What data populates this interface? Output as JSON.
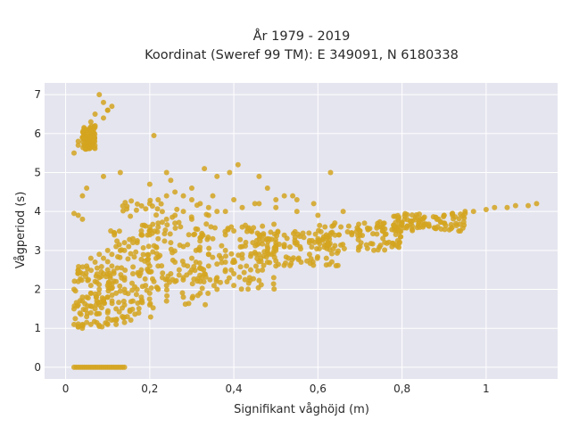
{
  "chart_data": {
    "type": "scatter",
    "title_line1": "År 1979 - 2019",
    "title_line2": "Koordinat (Sweref 99 TM): E 349091, N 6180338",
    "xlabel": "Signifikant våghöjd (m)",
    "ylabel": "Vågperiod (s)",
    "xlim": [
      -0.05,
      1.17
    ],
    "ylim": [
      -0.3,
      7.3
    ],
    "x_ticks": [
      0,
      0.2,
      0.4,
      0.6,
      0.8,
      1
    ],
    "x_tick_labels": [
      "0",
      "0,2",
      "0,4",
      "0,6",
      "0,8",
      "1"
    ],
    "y_ticks": [
      0,
      1,
      2,
      3,
      4,
      5,
      6,
      7
    ],
    "y_tick_labels": [
      "0",
      "1",
      "2",
      "3",
      "4",
      "5",
      "6",
      "7"
    ],
    "grid": true,
    "background": "#e5e5ef",
    "marker_color": "#d4a520",
    "series": [
      {
        "x": [
          0.02,
          0.03,
          0.04,
          0.05,
          0.06,
          0.08,
          0.1,
          0.12,
          0.14,
          0.02,
          0.03,
          0.04,
          0.05,
          0.06,
          0.06,
          0.07,
          0.08,
          0.09,
          0.1,
          0.11,
          0.02,
          0.03,
          0.04,
          0.05,
          0.06,
          0.07,
          0.08,
          0.09,
          0.1,
          0.12,
          0.14,
          0.03,
          0.05,
          0.07,
          0.09,
          0.11,
          0.13,
          0.15,
          0.17,
          0.04,
          0.06,
          0.08,
          0.1,
          0.12,
          0.14,
          0.16,
          0.18,
          0.2,
          0.06,
          0.08,
          0.1,
          0.12,
          0.14,
          0.16,
          0.18,
          0.2,
          0.22,
          0.1,
          0.12,
          0.14,
          0.16,
          0.18,
          0.2,
          0.22,
          0.24,
          0.26,
          0.14,
          0.16,
          0.18,
          0.2,
          0.22,
          0.24,
          0.26,
          0.28,
          0.17,
          0.19,
          0.21,
          0.23,
          0.25,
          0.27,
          0.29,
          0.31,
          0.2,
          0.22,
          0.24,
          0.26,
          0.28,
          0.3,
          0.32,
          0.34,
          0.36,
          0.18,
          0.2,
          0.22,
          0.25,
          0.28,
          0.31,
          0.34,
          0.37,
          0.4,
          0.3,
          0.32,
          0.34,
          0.36,
          0.38,
          0.4,
          0.42,
          0.44,
          0.46,
          0.48,
          0.5,
          0.35,
          0.38,
          0.4,
          0.42,
          0.44,
          0.46,
          0.48,
          0.5,
          0.52,
          0.42,
          0.45,
          0.48,
          0.5,
          0.52,
          0.55,
          0.58,
          0.6,
          0.62,
          0.5,
          0.52,
          0.55,
          0.58,
          0.6,
          0.62,
          0.65,
          0.68,
          0.7,
          0.62,
          0.65,
          0.68,
          0.7,
          0.72,
          0.75,
          0.78,
          0.8,
          0.82,
          0.75,
          0.78,
          0.8,
          0.82,
          0.85,
          0.88,
          0.9,
          0.92,
          0.95,
          0.88,
          0.9,
          0.92,
          0.95,
          0.97,
          1.0,
          1.02,
          1.05,
          1.07,
          1.1,
          1.12,
          0.4,
          0.45,
          0.5,
          0.35,
          0.3,
          0.25,
          0.55,
          0.6,
          0.28,
          0.33,
          0.38,
          0.43,
          0.48,
          0.53,
          0.58,
          0.32,
          0.36,
          0.4,
          0.44,
          0.5,
          0.56,
          0.62,
          0.22,
          0.26,
          0.3,
          0.34,
          0.38,
          0.42,
          0.26,
          0.3,
          0.34,
          0.38,
          0.42,
          0.46,
          0.5,
          0.54,
          0.2,
          0.24,
          0.28,
          0.32,
          0.36,
          0.4,
          0.03,
          0.04,
          0.05,
          0.06,
          0.07,
          0.09,
          0.1,
          0.11,
          0.02,
          0.03,
          0.04,
          0.05,
          0.06,
          0.07,
          0.08,
          0.09,
          0.1,
          0.03,
          0.04,
          0.2,
          0.24,
          0.33,
          0.36,
          0.39,
          0.41,
          0.46,
          0.48,
          0.52,
          0.55,
          0.59,
          0.63,
          0.66,
          0.21,
          0.05,
          0.09,
          0.04,
          0.13,
          0.02,
          0.02,
          0.03,
          0.04,
          0.05,
          0.06,
          0.07,
          0.08,
          0.09,
          0.1,
          0.11,
          0.12,
          0.13,
          0.14,
          0.025,
          0.035,
          0.045,
          0.055,
          0.065,
          0.075,
          0.085,
          0.095,
          0.105,
          0.115,
          0.125,
          0.135
        ],
        "y": [
          1.1,
          1.05,
          1.1,
          1.15,
          1.1,
          1.05,
          1.1,
          1.1,
          1.15,
          1.5,
          1.6,
          1.7,
          1.8,
          1.9,
          2.1,
          2.2,
          2.3,
          2.4,
          2.5,
          2.6,
          2.0,
          2.2,
          2.4,
          1.3,
          1.4,
          1.5,
          1.6,
          1.7,
          1.8,
          1.9,
          2.0,
          2.5,
          2.6,
          2.7,
          2.8,
          2.9,
          3.0,
          3.1,
          3.2,
          1.8,
          1.9,
          2.0,
          2.1,
          2.2,
          2.3,
          2.4,
          2.5,
          2.6,
          2.8,
          2.9,
          3.0,
          3.1,
          3.2,
          3.3,
          3.4,
          3.5,
          3.6,
          1.4,
          1.5,
          1.6,
          1.7,
          1.8,
          1.9,
          2.0,
          2.1,
          2.2,
          3.0,
          3.2,
          3.4,
          3.6,
          3.7,
          3.8,
          3.9,
          4.0,
          2.0,
          2.1,
          2.2,
          2.3,
          2.4,
          2.5,
          2.6,
          2.7,
          4.2,
          4.3,
          4.4,
          4.5,
          4.4,
          4.3,
          4.2,
          4.1,
          4.0,
          3.5,
          3.4,
          3.3,
          3.2,
          3.1,
          3.0,
          2.9,
          2.8,
          2.7,
          2.5,
          2.55,
          2.6,
          2.65,
          2.7,
          2.75,
          2.8,
          2.85,
          2.9,
          2.95,
          3.0,
          3.3,
          3.4,
          3.5,
          3.6,
          3.5,
          3.4,
          3.3,
          3.2,
          3.1,
          2.9,
          2.95,
          3.0,
          3.05,
          3.1,
          3.15,
          3.2,
          3.25,
          3.3,
          3.1,
          3.15,
          3.2,
          3.25,
          3.3,
          3.35,
          3.4,
          3.45,
          3.5,
          3.35,
          3.4,
          3.45,
          3.5,
          3.55,
          3.6,
          3.65,
          3.7,
          3.75,
          3.6,
          3.65,
          3.7,
          3.75,
          3.8,
          3.85,
          3.9,
          3.9,
          3.95,
          3.85,
          3.9,
          3.95,
          4.0,
          4.0,
          4.05,
          4.1,
          4.1,
          4.15,
          4.15,
          4.2,
          4.3,
          4.2,
          4.1,
          4.4,
          4.6,
          4.8,
          4.0,
          3.9,
          2.3,
          2.4,
          2.5,
          2.6,
          2.7,
          2.8,
          2.9,
          2.2,
          2.3,
          2.4,
          2.5,
          2.6,
          2.7,
          2.8,
          2.6,
          2.7,
          2.8,
          2.9,
          3.0,
          3.1,
          3.7,
          3.8,
          3.9,
          4.0,
          4.1,
          4.2,
          4.3,
          4.4,
          1.6,
          1.7,
          1.8,
          1.9,
          2.0,
          2.1,
          5.8,
          5.9,
          6.0,
          6.1,
          6.2,
          6.4,
          6.6,
          6.7,
          5.5,
          5.7,
          5.9,
          6.1,
          6.3,
          6.5,
          7.0,
          6.8,
          6.6,
          3.9,
          4.4,
          4.7,
          5.0,
          5.1,
          4.9,
          5.0,
          5.2,
          4.9,
          4.6,
          4.4,
          4.3,
          4.2,
          5.0,
          4.0,
          5.95,
          4.6,
          4.9,
          3.8,
          5.0,
          3.95,
          0,
          0,
          0,
          0,
          0,
          0,
          0,
          0,
          0,
          0,
          0,
          0,
          0,
          0,
          0,
          0,
          0,
          0,
          0,
          0,
          0,
          0,
          0,
          0,
          0
        ]
      }
    ],
    "dense_regions": [
      {
        "x_range": [
          0.02,
          0.14
        ],
        "y_range": [
          1.0,
          2.6
        ]
      },
      {
        "x_range": [
          0.1,
          0.22
        ],
        "y_range": [
          1.2,
          4.3
        ]
      },
      {
        "x_range": [
          0.18,
          0.34
        ],
        "y_range": [
          1.6,
          4.2
        ]
      },
      {
        "x_range": [
          0.3,
          0.5
        ],
        "y_range": [
          2.0,
          3.7
        ]
      },
      {
        "x_range": [
          0.45,
          0.65
        ],
        "y_range": [
          2.6,
          3.5
        ]
      },
      {
        "x_range": [
          0.6,
          0.8
        ],
        "y_range": [
          3.0,
          3.75
        ]
      },
      {
        "x_range": [
          0.78,
          0.95
        ],
        "y_range": [
          3.5,
          3.95
        ]
      },
      {
        "x_range": [
          0.04,
          0.07
        ],
        "y_range": [
          5.6,
          6.2
        ]
      }
    ]
  }
}
